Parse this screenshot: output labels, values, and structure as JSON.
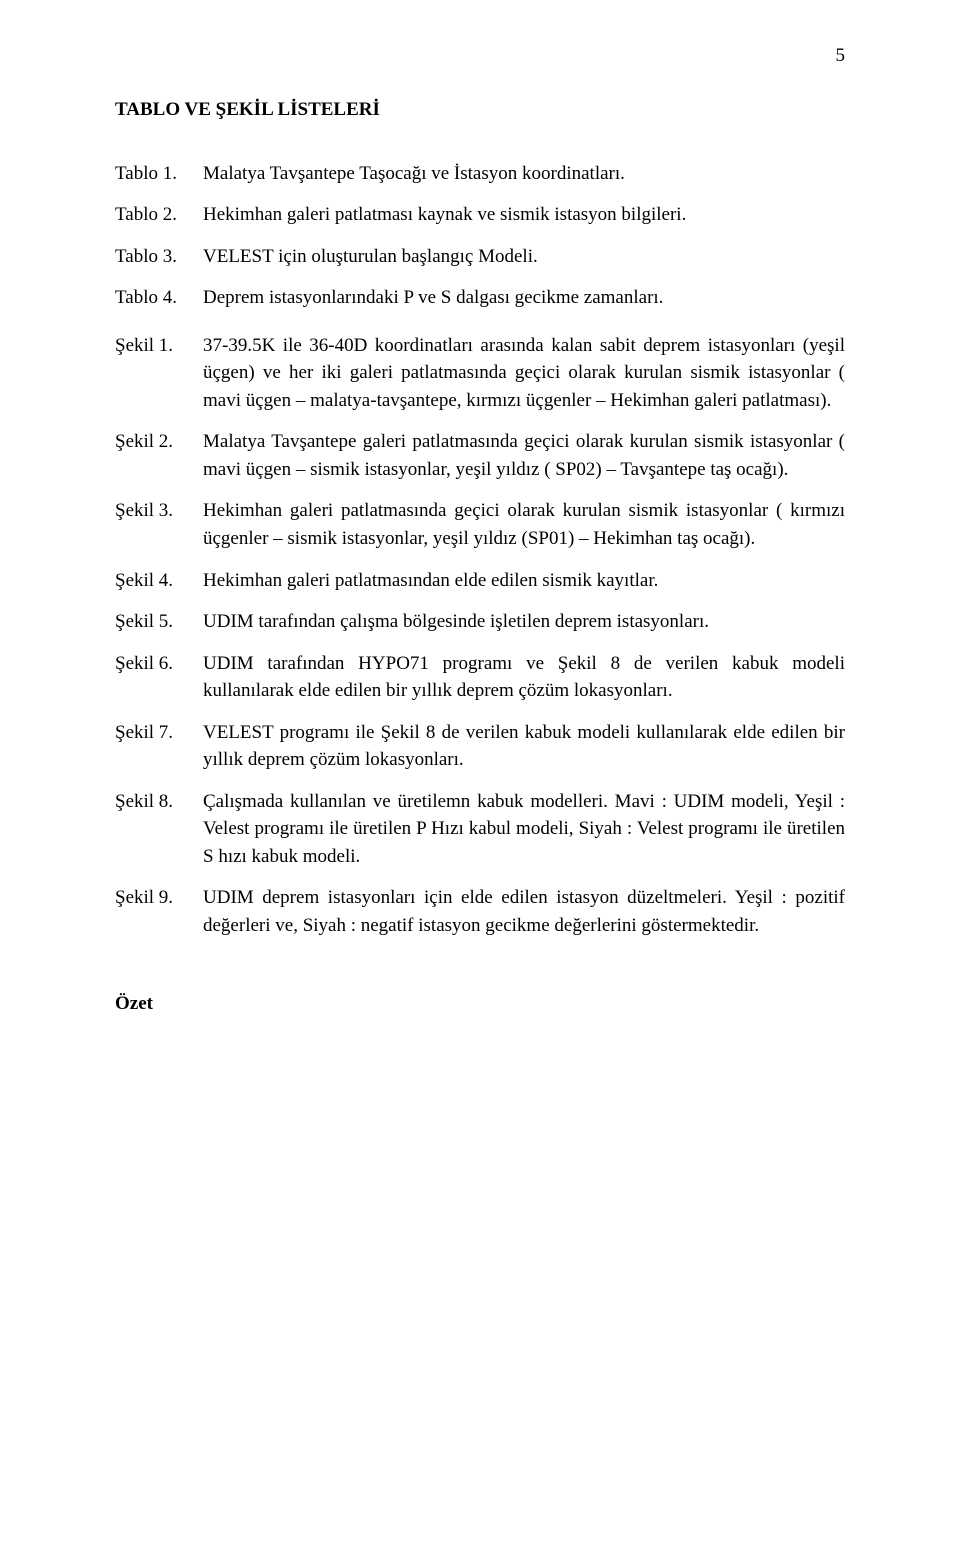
{
  "page_number": "5",
  "heading": "TABLO VE ŞEKİL LİSTELERİ",
  "tablolar": [
    {
      "label": "Tablo 1.",
      "text": "Malatya Tavşantepe Taşocağı ve İstasyon koordinatları."
    },
    {
      "label": "Tablo 2.",
      "text": "Hekimhan galeri patlatması kaynak ve sismik istasyon bilgileri."
    },
    {
      "label": "Tablo 3.",
      "text": "VELEST için oluşturulan başlangıç Modeli."
    },
    {
      "label": "Tablo 4.",
      "text": "Deprem istasyonlarındaki P ve S dalgası gecikme zamanları."
    }
  ],
  "sekiller": [
    {
      "label": "Şekil 1.",
      "text": "37-39.5K ile 36-40D koordinatları arasında kalan sabit deprem istasyonları (yeşil üçgen) ve her iki galeri patlatmasında geçici olarak kurulan sismik istasyonlar ( mavi üçgen – malatya-tavşantepe, kırmızı üçgenler – Hekimhan galeri patlatması)."
    },
    {
      "label": "Şekil 2.",
      "text": "Malatya Tavşantepe galeri patlatmasında geçici olarak kurulan sismik istasyonlar ( mavi üçgen – sismik istasyonlar, yeşil yıldız ( SP02) – Tavşantepe taş ocağı)."
    },
    {
      "label": "Şekil 3.",
      "text": "Hekimhan galeri patlatmasında geçici olarak kurulan sismik istasyonlar ( kırmızı üçgenler – sismik istasyonlar, yeşil yıldız (SP01) – Hekimhan taş ocağı)."
    },
    {
      "label": "Şekil 4.",
      "text": "Hekimhan galeri patlatmasından elde edilen sismik kayıtlar."
    },
    {
      "label": "Şekil 5.",
      "text": "UDIM tarafından çalışma bölgesinde işletilen deprem istasyonları."
    },
    {
      "label": "Şekil 6.",
      "text": "UDIM tarafından HYPO71 programı ve Şekil 8 de verilen kabuk modeli kullanılarak elde edilen bir yıllık deprem çözüm lokasyonları."
    },
    {
      "label": "Şekil 7.",
      "text": "VELEST programı ile Şekil 8 de verilen kabuk modeli kullanılarak elde edilen bir yıllık deprem çözüm lokasyonları."
    },
    {
      "label": "Şekil 8.",
      "text": "Çalışmada kullanılan ve üretilemn kabuk modelleri. Mavi : UDIM modeli, Yeşil : Velest programı ile üretilen P Hızı kabul modeli, Siyah : Velest programı ile üretilen S hızı kabuk modeli."
    },
    {
      "label": "Şekil 9.",
      "text": "UDIM deprem istasyonları için elde edilen istasyon düzeltmeleri. Yeşil : pozitif değerleri ve, Siyah : negatif istasyon gecikme değerlerini göstermektedir."
    }
  ],
  "ozet": "Özet"
}
